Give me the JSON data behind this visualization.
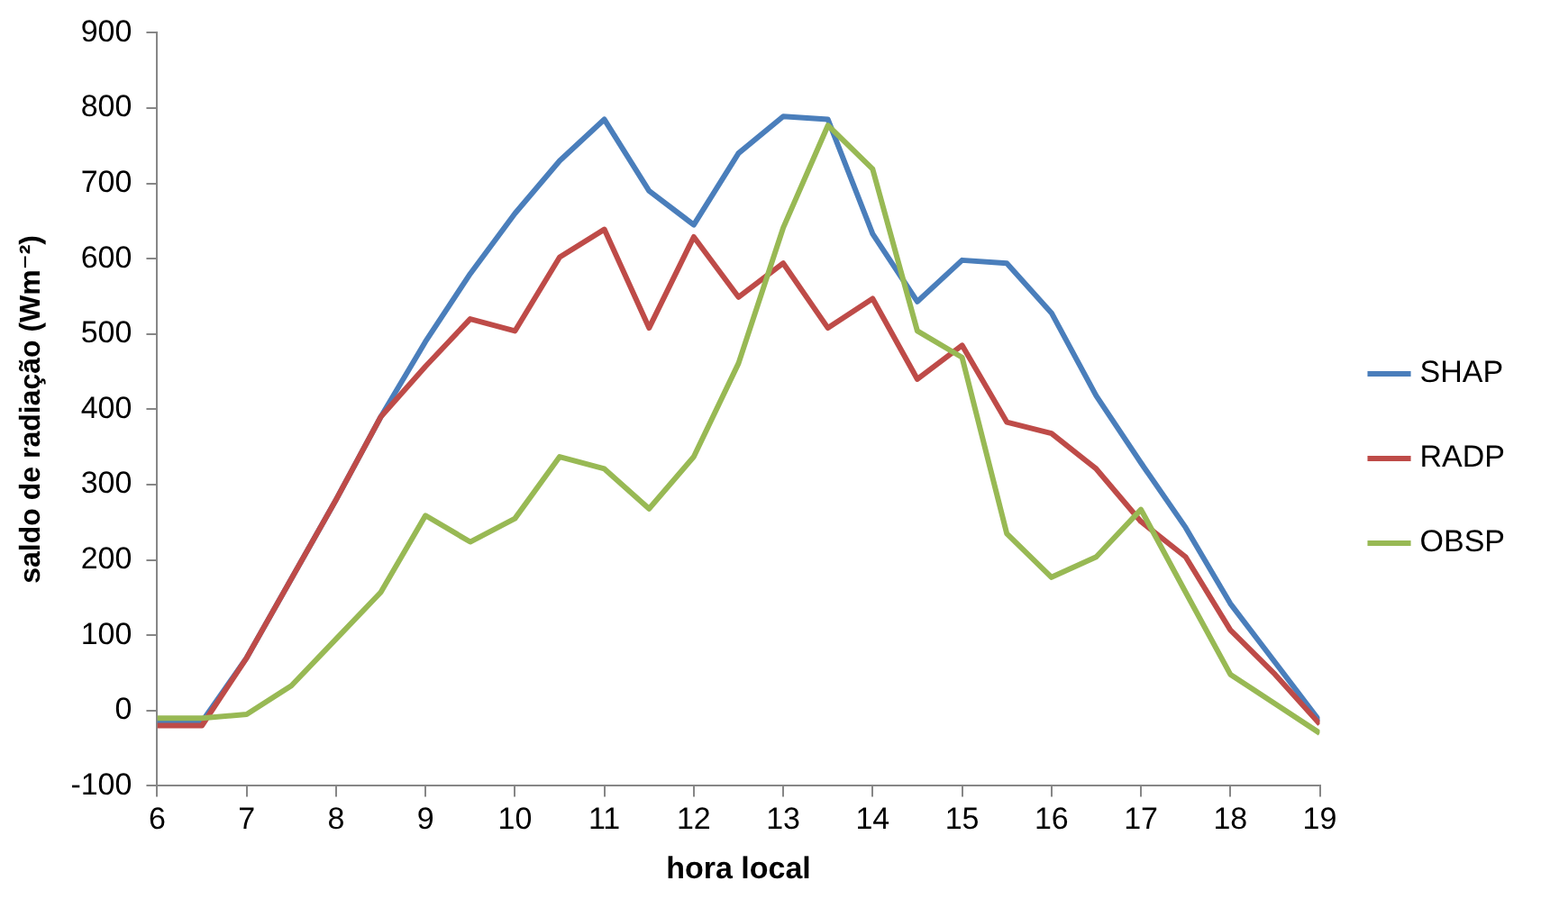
{
  "chart_data": {
    "type": "line",
    "xlabel": "hora local",
    "ylabel": "saldo de radiação (Wm⁻²)",
    "x": [
      6,
      6.5,
      7,
      7.5,
      8,
      8.5,
      9,
      9.5,
      10,
      10.5,
      11,
      11.5,
      12,
      12.5,
      13,
      13.5,
      14,
      14.5,
      15,
      15.5,
      16,
      16.5,
      17,
      17.5,
      18,
      18.5,
      19
    ],
    "series": [
      {
        "name": "SHAP",
        "color": "#4a7ebb",
        "values": [
          -15,
          -15,
          70,
          175,
          280,
          390,
          490,
          580,
          660,
          730,
          785,
          690,
          645,
          740,
          789,
          785,
          633,
          543,
          598,
          594,
          528,
          418,
          329,
          243,
          142,
          64,
          -14
        ]
      },
      {
        "name": "RADP",
        "color": "#be4b48",
        "values": [
          -20,
          -20,
          70,
          175,
          280,
          390,
          457,
          520,
          504,
          602,
          639,
          508,
          629,
          549,
          594,
          508,
          547,
          440,
          485,
          383,
          368,
          321,
          251,
          204,
          107,
          48,
          -18
        ]
      },
      {
        "name": "OBSP",
        "color": "#98b954",
        "values": [
          -10,
          -10,
          -5,
          33,
          95,
          157,
          259,
          224,
          255,
          337,
          321,
          268,
          337,
          461,
          641,
          777,
          719,
          504,
          469,
          235,
          177,
          204,
          267,
          157,
          48,
          9,
          -30
        ]
      }
    ],
    "xlim": [
      6,
      19
    ],
    "xticks": [
      6,
      7,
      8,
      9,
      10,
      11,
      12,
      13,
      14,
      15,
      16,
      17,
      18,
      19
    ],
    "ylim": [
      -100,
      900
    ],
    "yticks": [
      -100,
      0,
      100,
      200,
      300,
      400,
      500,
      600,
      700,
      800,
      900
    ],
    "grid": false,
    "legend": "right",
    "marker": "none",
    "line_style": "solid"
  }
}
